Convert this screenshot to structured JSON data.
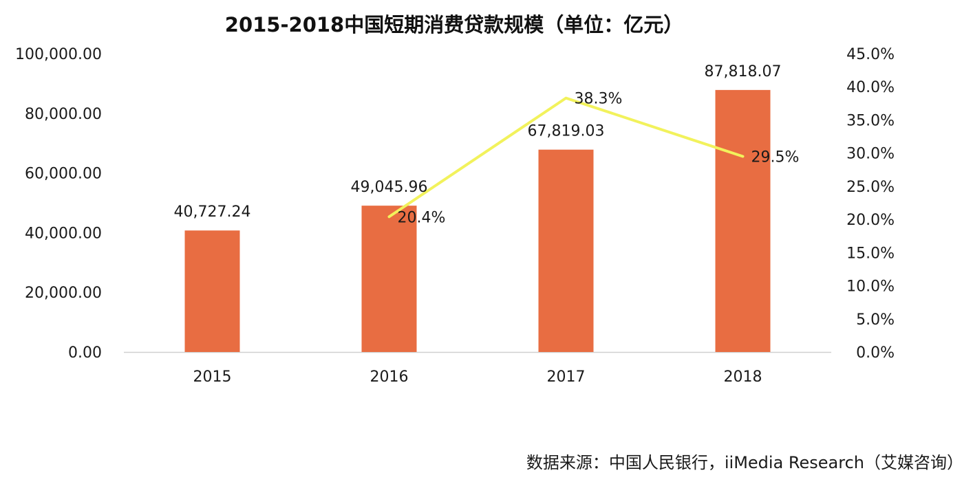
{
  "chart_data": {
    "type": "bar",
    "title": "2015-2018中国短期消费贷款规模（单位：亿元）",
    "categories": [
      "2015",
      "2016",
      "2017",
      "2018"
    ],
    "series": [
      {
        "type": "bar",
        "values": [
          40727.24,
          49045.96,
          67819.03,
          87818.07
        ],
        "labels": [
          "40,727.24",
          "49,045.96",
          "67,819.03",
          "87,818.07"
        ],
        "color": "#E86D42",
        "axis": "left"
      },
      {
        "type": "line",
        "values": [
          null,
          20.4,
          38.3,
          29.5
        ],
        "labels": [
          "",
          "20.4%",
          "38.3%",
          "29.5%"
        ],
        "color": "#F2F25C",
        "axis": "right"
      }
    ],
    "y_left": {
      "ylim": [
        0,
        100000
      ],
      "ticks": [
        "0.00",
        "20,000.00",
        "40,000.00",
        "60,000.00",
        "80,000.00",
        "100,000.00"
      ]
    },
    "y_right": {
      "ylim": [
        0,
        45
      ],
      "ticks": [
        "0.0%",
        "5.0%",
        "10.0%",
        "15.0%",
        "20.0%",
        "25.0%",
        "30.0%",
        "35.0%",
        "40.0%",
        "45.0%"
      ]
    },
    "grid": false,
    "legend": "none"
  },
  "source_text": "数据来源：中国人民银行，iiMedia Research（艾媒咨询）"
}
